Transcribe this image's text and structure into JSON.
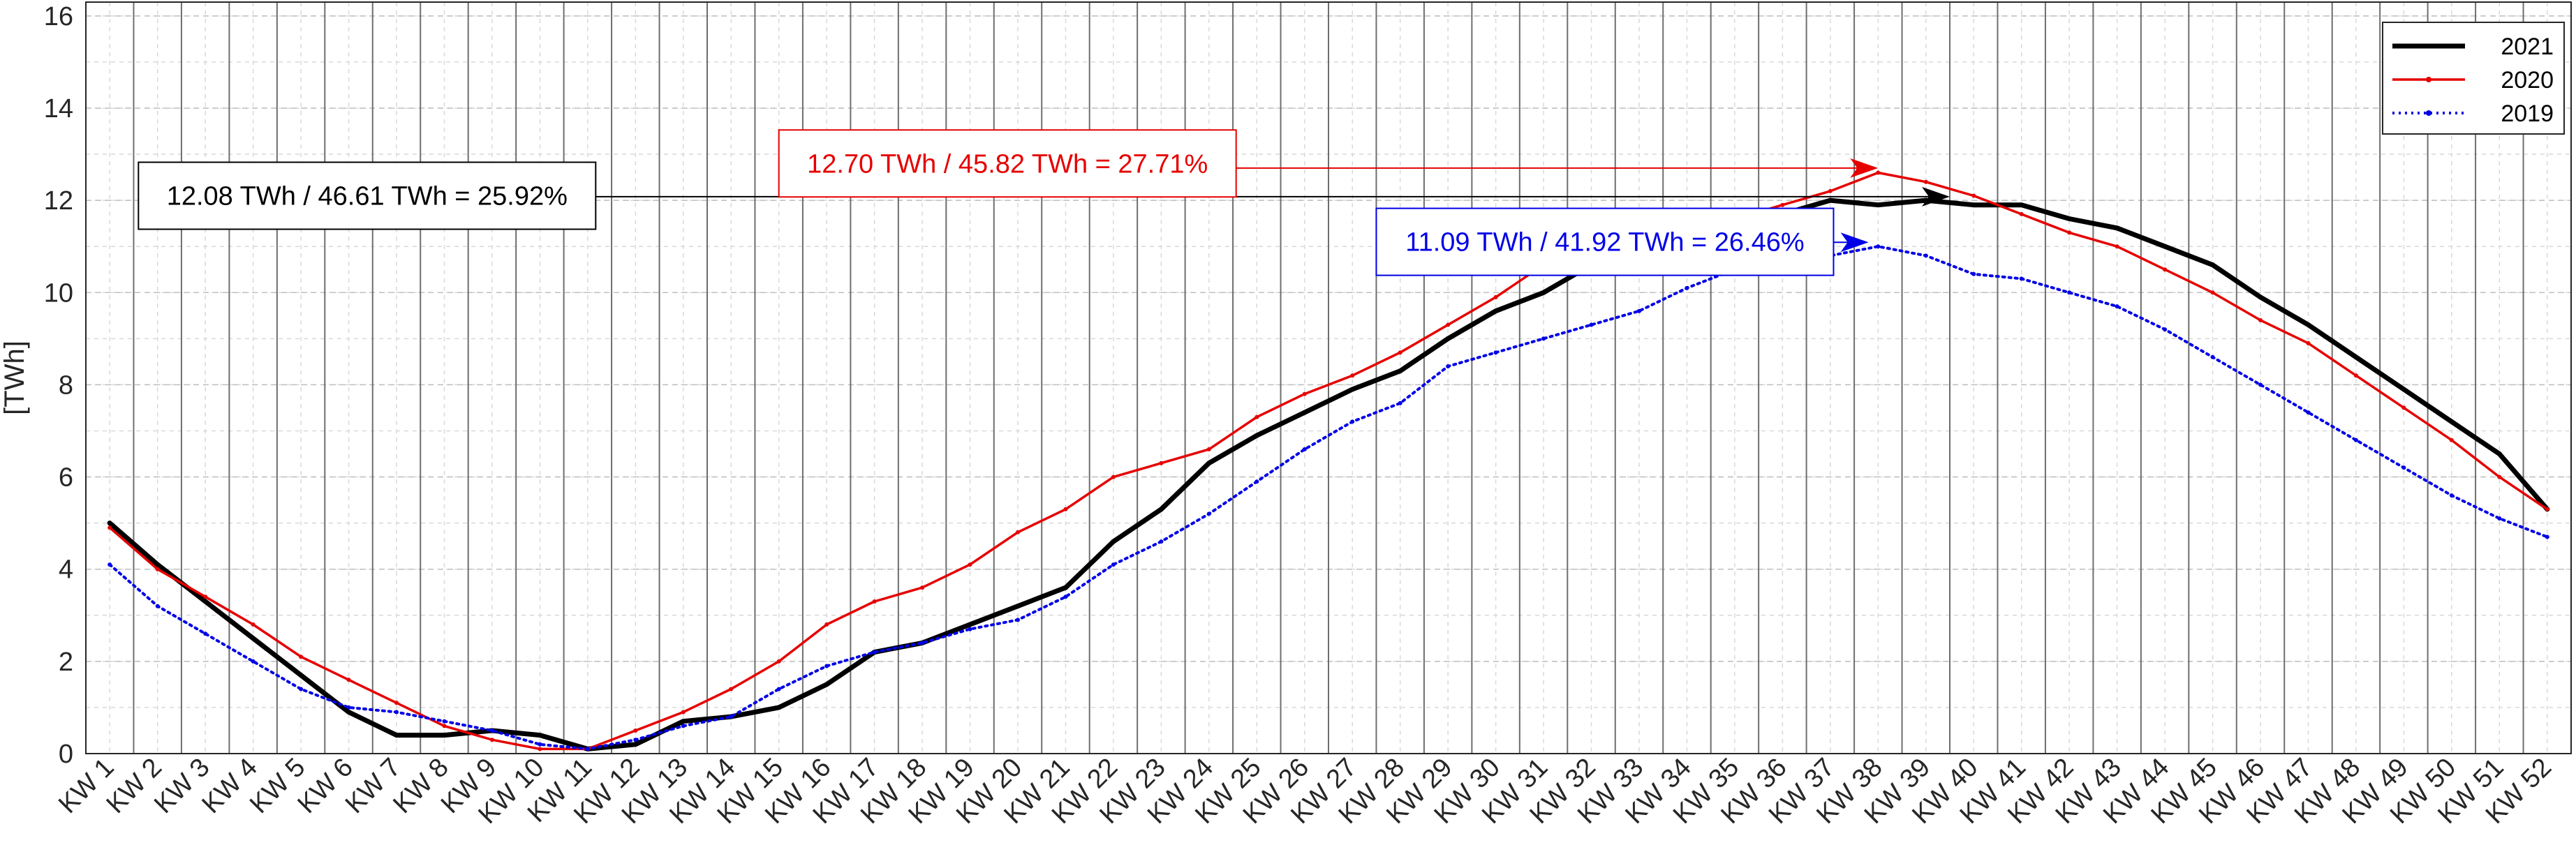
{
  "chart_data": {
    "type": "line",
    "ylabel": "[TWh]",
    "ylim": [
      0,
      16.3
    ],
    "yticks": [
      0,
      2,
      4,
      6,
      8,
      10,
      12,
      14,
      16
    ],
    "categories": [
      "KW 1",
      "KW 2",
      "KW 3",
      "KW 4",
      "KW 5",
      "KW 6",
      "KW 7",
      "KW 8",
      "KW 9",
      "KW 10",
      "KW 11",
      "KW 12",
      "KW 13",
      "KW 14",
      "KW 15",
      "KW 16",
      "KW 17",
      "KW 18",
      "KW 19",
      "KW 20",
      "KW 21",
      "KW 22",
      "KW 23",
      "KW 24",
      "KW 25",
      "KW 26",
      "KW 27",
      "KW 28",
      "KW 29",
      "KW 30",
      "KW 31",
      "KW 32",
      "KW 33",
      "KW 34",
      "KW 35",
      "KW 36",
      "KW 37",
      "KW 38",
      "KW 39",
      "KW 40",
      "KW 41",
      "KW 42",
      "KW 43",
      "KW 44",
      "KW 45",
      "KW 46",
      "KW 47",
      "KW 48",
      "KW 49",
      "KW 50",
      "KW 51",
      "KW 52"
    ],
    "grid": true,
    "legend_position": "top-right",
    "series": [
      {
        "name": "2021",
        "color": "#000000",
        "style": "solid-thick",
        "values": [
          5.0,
          4.1,
          3.3,
          2.5,
          1.7,
          0.9,
          0.4,
          0.4,
          0.5,
          0.4,
          0.1,
          0.2,
          0.7,
          0.8,
          1.0,
          1.5,
          2.2,
          2.4,
          2.8,
          3.2,
          3.6,
          4.6,
          5.3,
          6.3,
          6.9,
          7.4,
          7.9,
          8.3,
          9.0,
          9.6,
          10.0,
          10.6,
          10.9,
          11.1,
          11.1,
          11.7,
          12.0,
          11.9,
          12.0,
          11.9,
          11.9,
          11.6,
          11.4,
          11.0,
          10.6,
          9.9,
          9.3,
          8.6,
          7.9,
          7.2,
          6.5,
          5.3
        ]
      },
      {
        "name": "2020",
        "color": "#e60000",
        "style": "solid-dot",
        "values": [
          4.9,
          4.0,
          3.4,
          2.8,
          2.1,
          1.6,
          1.1,
          0.6,
          0.3,
          0.1,
          0.1,
          0.5,
          0.9,
          1.4,
          2.0,
          2.8,
          3.3,
          3.6,
          4.1,
          4.8,
          5.3,
          6.0,
          6.3,
          6.6,
          7.3,
          7.8,
          8.2,
          8.7,
          9.3,
          9.9,
          10.6,
          11.0,
          11.3,
          11.6,
          11.6,
          11.9,
          12.2,
          12.6,
          12.4,
          12.1,
          11.7,
          11.3,
          11.0,
          10.5,
          10.0,
          9.4,
          8.9,
          8.2,
          7.5,
          6.8,
          6.0,
          5.3
        ]
      },
      {
        "name": "2019",
        "color": "#0000e6",
        "style": "dotted",
        "values": [
          4.1,
          3.2,
          2.6,
          2.0,
          1.4,
          1.0,
          0.9,
          0.7,
          0.5,
          0.2,
          0.1,
          0.3,
          0.6,
          0.8,
          1.4,
          1.9,
          2.2,
          2.4,
          2.7,
          2.9,
          3.4,
          4.1,
          4.6,
          5.2,
          5.9,
          6.6,
          7.2,
          7.6,
          8.4,
          8.7,
          9.0,
          9.3,
          9.6,
          10.1,
          10.5,
          10.6,
          10.8,
          11.0,
          10.8,
          10.4,
          10.3,
          10.0,
          9.7,
          9.2,
          8.6,
          8.0,
          7.4,
          6.8,
          6.2,
          5.6,
          5.1,
          4.7
        ]
      }
    ],
    "annotations": [
      {
        "text": "12.08 TWh / 46.61 TWh = 25.92%",
        "color": "#000000",
        "arrow_to_week": 39.5,
        "arrow_y": 12.08,
        "box_week": 1.6,
        "box_y": 12.1
      },
      {
        "text": "12.70 TWh / 45.82 TWh = 27.71%",
        "color": "#e60000",
        "arrow_to_week": 38.0,
        "arrow_y": 12.7,
        "box_week": 15.0,
        "box_y": 12.8
      },
      {
        "text": "11.09 TWh / 41.92 TWh = 26.46%",
        "color": "#0000e6",
        "arrow_to_week": 37.8,
        "arrow_y": 11.09,
        "box_week": 27.5,
        "box_y": 11.1
      }
    ]
  }
}
